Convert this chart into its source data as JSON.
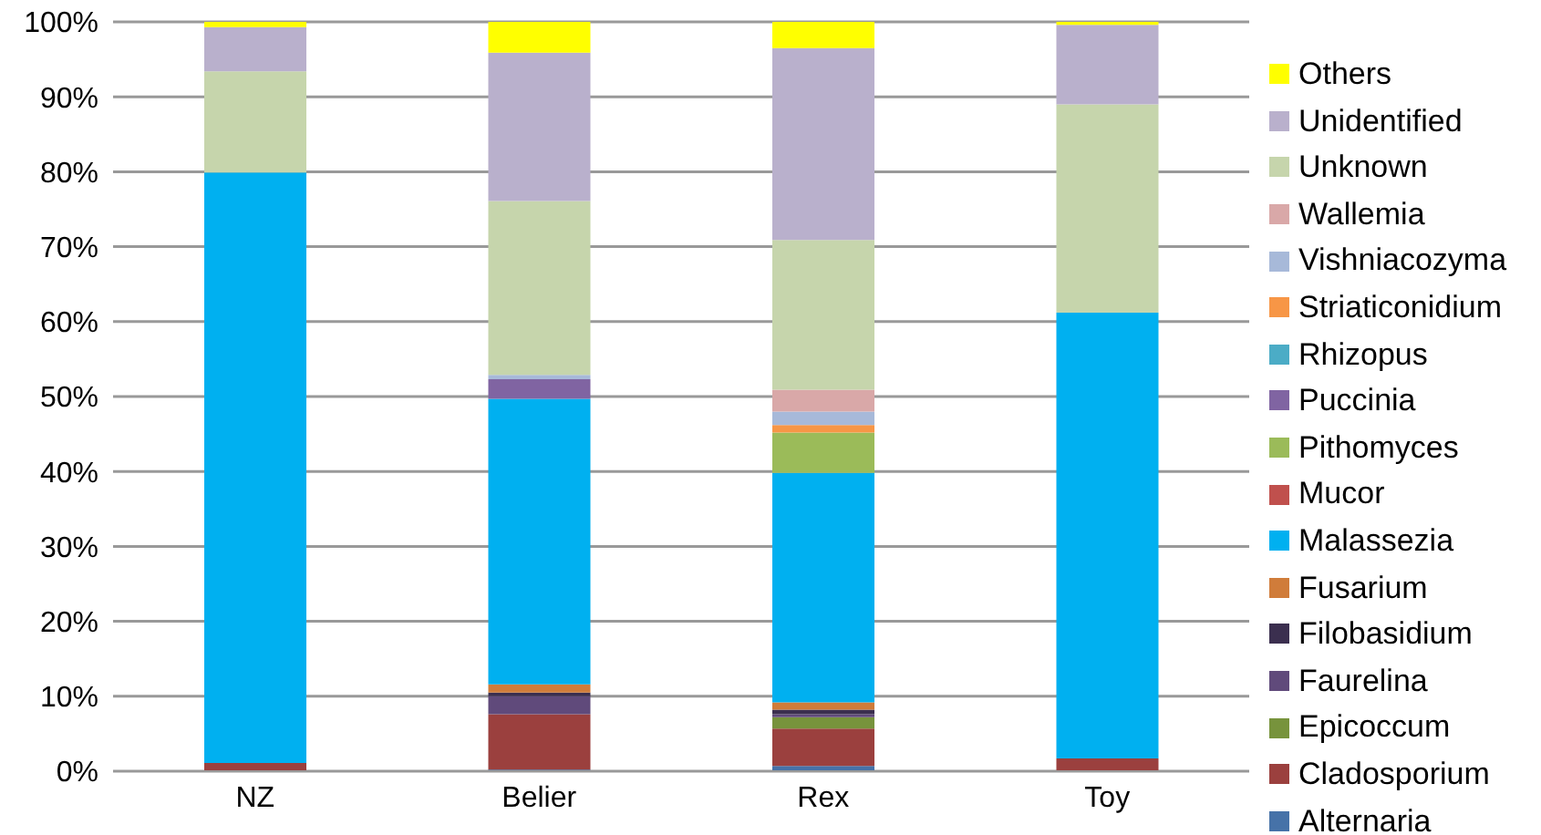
{
  "chart_data": {
    "type": "bar",
    "stacked": true,
    "categories": [
      "NZ",
      "Belier",
      "Rex",
      "Toy"
    ],
    "series": [
      {
        "name": "Alternaria",
        "color": "#4672a8",
        "values": [
          0,
          0.2,
          0.7,
          0
        ]
      },
      {
        "name": "Cladosporium",
        "color": "#9b403e",
        "values": [
          1.1,
          7.4,
          5.0,
          1.7
        ]
      },
      {
        "name": "Epicoccum",
        "color": "#77933c",
        "values": [
          0,
          0,
          1.5,
          0
        ]
      },
      {
        "name": "Faurelina",
        "color": "#604a7b",
        "values": [
          0,
          2.4,
          0.4,
          0
        ]
      },
      {
        "name": "Filobasidium",
        "color": "#3b2f4f",
        "values": [
          0,
          0.5,
          0.6,
          0
        ]
      },
      {
        "name": "Fusarium",
        "color": "#d07c3a",
        "values": [
          0,
          1.1,
          1.0,
          0
        ]
      },
      {
        "name": "Malassezia",
        "color": "#00b0f0",
        "values": [
          78.8,
          38.1,
          30.6,
          59.5
        ]
      },
      {
        "name": "Mucor",
        "color": "#c0504d",
        "values": [
          0,
          0,
          0,
          0
        ]
      },
      {
        "name": "Pithomyces",
        "color": "#9bbb59",
        "values": [
          0,
          0,
          5.4,
          0
        ]
      },
      {
        "name": "Puccinia",
        "color": "#8064a2",
        "values": [
          0,
          2.6,
          0,
          0
        ]
      },
      {
        "name": "Rhizopus",
        "color": "#4bacc6",
        "values": [
          0,
          0,
          0,
          0
        ]
      },
      {
        "name": "Striaticonidium",
        "color": "#f79646",
        "values": [
          0,
          0,
          1.0,
          0
        ]
      },
      {
        "name": "Vishniacozyma",
        "color": "#a7b9d9",
        "values": [
          0,
          0.6,
          1.8,
          0
        ]
      },
      {
        "name": "Wallemia",
        "color": "#d9a8a8",
        "values": [
          0,
          0,
          2.9,
          0
        ]
      },
      {
        "name": "Unknown",
        "color": "#c6d5ac",
        "values": [
          13.5,
          23.2,
          20.0,
          27.8
        ]
      },
      {
        "name": "Unidentified",
        "color": "#b9b0cc",
        "values": [
          5.9,
          19.8,
          25.6,
          10.6
        ]
      },
      {
        "name": "Others",
        "color": "#ffff00",
        "values": [
          0.7,
          4.1,
          3.5,
          0.4
        ]
      }
    ],
    "ylim": [
      0,
      100
    ],
    "yticks": [
      {
        "value": 0,
        "label": "0%"
      },
      {
        "value": 10,
        "label": "10%"
      },
      {
        "value": 20,
        "label": "20%"
      },
      {
        "value": 30,
        "label": "30%"
      },
      {
        "value": 40,
        "label": "40%"
      },
      {
        "value": 50,
        "label": "50%"
      },
      {
        "value": 60,
        "label": "60%"
      },
      {
        "value": 70,
        "label": "70%"
      },
      {
        "value": 80,
        "label": "80%"
      },
      {
        "value": 90,
        "label": "90%"
      },
      {
        "value": 100,
        "label": "100%"
      }
    ],
    "grid": "y",
    "legend": "right"
  }
}
